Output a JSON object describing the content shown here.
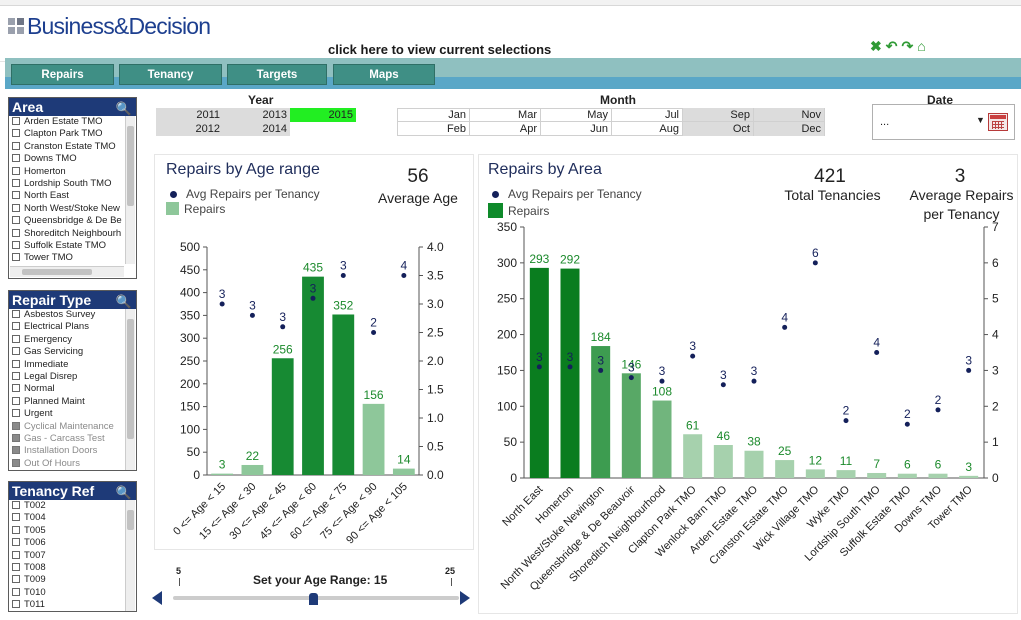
{
  "header": {
    "logo_text": "Business&Decision",
    "selections_link": "click here to view current selections",
    "icons": [
      "clear-icon",
      "back-icon",
      "forward-icon",
      "home-icon"
    ]
  },
  "tabs": [
    "Repairs",
    "Tenancy",
    "Targets",
    "Maps"
  ],
  "colors": {
    "tab": "#3f8f85",
    "listbox_title": "#1e3a78",
    "bar_dark": "#0e8a2a",
    "bar_light": "#8ec79a",
    "selected_year": "#22ee22"
  },
  "area_list": {
    "title": "Area",
    "items": [
      "Arden Estate TMO",
      "Clapton Park TMO",
      "Cranston Estate TMO",
      "Downs TMO",
      "Homerton",
      "Lordship South TMO",
      "North East",
      "North West/Stoke New",
      "Queensbridge & De Be",
      "Shoreditch Neighbourh",
      "Suffolk Estate TMO",
      "Tower TMO"
    ]
  },
  "repair_type_list": {
    "title": "Repair Type",
    "items": [
      "Asbestos Survey",
      "Electrical Plans",
      "Emergency",
      "Gas Servicing",
      "Immediate",
      "Legal Disrep",
      "Normal",
      "Planned Maint",
      "Urgent",
      "Cyclical Maintenance",
      "Gas - Carcass Test",
      "Installation Doors",
      "Out Of Hours"
    ],
    "excluded": [
      false,
      false,
      false,
      false,
      false,
      false,
      false,
      false,
      false,
      true,
      true,
      true,
      true
    ]
  },
  "tenancy_list": {
    "title": "Tenancy Ref",
    "items": [
      "T002",
      "T004",
      "T005",
      "T006",
      "T007",
      "T008",
      "T009",
      "T010",
      "T011"
    ]
  },
  "year": {
    "label": "Year",
    "values": [
      "2011",
      "2013",
      "2015",
      "2012",
      "2014"
    ],
    "selected": "2015"
  },
  "month": {
    "label": "Month",
    "values": [
      "Jan",
      "Mar",
      "May",
      "Jul",
      "Sep",
      "Nov",
      "Feb",
      "Apr",
      "Jun",
      "Aug",
      "Oct",
      "Dec"
    ]
  },
  "date": {
    "label": "Date",
    "value": "...",
    "arrow": "▼"
  },
  "age_chart": {
    "title": "Repairs by Age range",
    "kpi_value": "56",
    "kpi_label": "Average Age",
    "legend_avg": "Avg Repairs per Tenancy",
    "legend_repairs": "Repairs"
  },
  "area_chart": {
    "title": "Repairs by Area",
    "kpi1_value": "421",
    "kpi1_label": "Total Tenancies",
    "kpi2_value": "3",
    "kpi2_label_line1": "Average Repairs",
    "kpi2_label_line2": "per Tenancy",
    "legend_avg": "Avg Repairs per Tenancy",
    "legend_repairs": "Repairs"
  },
  "slider": {
    "label": "Set your Age Range: 15",
    "min": "5",
    "max": "25",
    "value": 15
  },
  "chart_data": [
    {
      "type": "bar",
      "title": "Repairs by Age range",
      "categories": [
        "0 <= Age < 15",
        "15 <= Age < 30",
        "30 <= Age < 45",
        "45 <= Age < 60",
        "60 <= Age < 75",
        "75 <= Age < 90",
        "90 <= Age < 105"
      ],
      "series": [
        {
          "name": "Repairs",
          "values": [
            3,
            22,
            256,
            435,
            352,
            156,
            14
          ],
          "axis": "left"
        },
        {
          "name": "Avg Repairs per Tenancy",
          "values": [
            3.0,
            2.8,
            2.6,
            3.1,
            3.5,
            2.5,
            3.5
          ],
          "labels": [
            "3",
            "3",
            "3",
            "3",
            "3",
            "2",
            "4"
          ],
          "axis": "right",
          "type": "scatter"
        }
      ],
      "ylim": [
        0,
        500
      ],
      "yticks": [
        "0",
        "50",
        "100",
        "150",
        "200",
        "250",
        "300",
        "350",
        "400",
        "450",
        "500"
      ],
      "y2lim": [
        0,
        4.0
      ],
      "y2ticks": [
        "0.0",
        "0.5",
        "1.0",
        "1.5",
        "2.0",
        "2.5",
        "3.0",
        "3.5",
        "4.0"
      ],
      "bar_shades": [
        "light",
        "light",
        "dark",
        "dark",
        "dark",
        "light",
        "light"
      ]
    },
    {
      "type": "bar",
      "title": "Repairs by Area",
      "categories": [
        "North East",
        "Homerton",
        "North West/Stoke Newington",
        "Queensbridge & De Beauvoir",
        "Shoreditch Neighbourhood",
        "Clapton Park TMO",
        "Wenlock Barn TMO",
        "Arden Estate TMO",
        "Cranston Estate TMO",
        "Wick Village TMO",
        "Wyke TMO",
        "Lordship South TMO",
        "Suffolk Estate TMO",
        "Downs TMO",
        "Tower TMO"
      ],
      "series": [
        {
          "name": "Repairs",
          "values": [
            293,
            292,
            184,
            146,
            108,
            61,
            46,
            38,
            25,
            12,
            11,
            7,
            6,
            6,
            3
          ],
          "axis": "left"
        },
        {
          "name": "Avg Repairs per Tenancy",
          "values": [
            3.1,
            3.1,
            3.0,
            2.8,
            2.7,
            3.4,
            2.6,
            2.7,
            4.2,
            6.0,
            1.6,
            3.5,
            1.5,
            1.9,
            3.0
          ],
          "labels": [
            "3",
            "3",
            "3",
            "3",
            "3",
            "3",
            "3",
            "3",
            "4",
            "6",
            "2",
            "4",
            "2",
            "2",
            "3"
          ],
          "axis": "right",
          "type": "scatter"
        }
      ],
      "ylim": [
        0,
        350
      ],
      "yticks": [
        "0",
        "50",
        "100",
        "150",
        "200",
        "250",
        "300",
        "350"
      ],
      "y2lim": [
        0,
        7
      ],
      "y2ticks": [
        "0",
        "1",
        "2",
        "3",
        "4",
        "5",
        "6",
        "7"
      ],
      "bar_shades": [
        "d0",
        "d0",
        "d1",
        "d2",
        "d3",
        "d4",
        "d4",
        "d4",
        "d4",
        "d4",
        "d4",
        "d4",
        "d4",
        "d4",
        "d4"
      ]
    }
  ]
}
